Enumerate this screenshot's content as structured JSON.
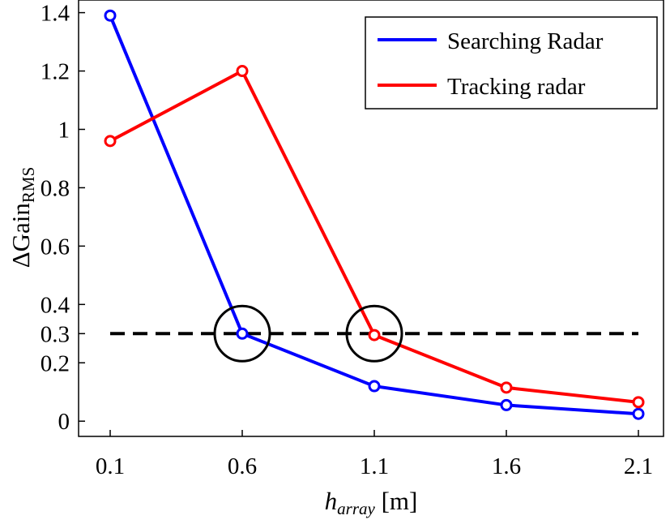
{
  "chart_data": {
    "type": "line",
    "x": [
      0.1,
      0.6,
      1.1,
      1.6,
      2.1
    ],
    "x_tick_labels": [
      "0.1",
      "0.6",
      "1.1",
      "1.6",
      "2.1"
    ],
    "y_ticks": [
      0,
      0.2,
      0.3,
      0.4,
      0.6,
      0.8,
      1,
      1.2,
      1.4
    ],
    "y_tick_labels": [
      "0",
      "0.2",
      "0.3",
      "0.4",
      "0.6",
      "0.8",
      "1",
      "1.2",
      "1.4"
    ],
    "xlim": [
      0.1,
      2.1
    ],
    "ylim": [
      -0.08,
      1.41
    ],
    "xlabel": {
      "main": "h",
      "sub": "array",
      "unit": " [m]"
    },
    "ylabel": {
      "main": "ΔGain",
      "sub": "RMS"
    },
    "grid": false,
    "legend_position": "top-right",
    "series": [
      {
        "name": "Searching Radar",
        "color": "#0000ff",
        "values": [
          1.39,
          0.3,
          0.12,
          0.055,
          0.025
        ]
      },
      {
        "name": "Tracking radar",
        "color": "#ff0000",
        "values": [
          0.96,
          1.2,
          0.295,
          0.115,
          0.065
        ]
      }
    ],
    "reference_line": {
      "y": 0.3,
      "style": "dashed",
      "color": "#000000"
    },
    "highlight_circles": [
      {
        "x": 0.6,
        "y": 0.3
      },
      {
        "x": 1.1,
        "y": 0.3
      }
    ]
  }
}
